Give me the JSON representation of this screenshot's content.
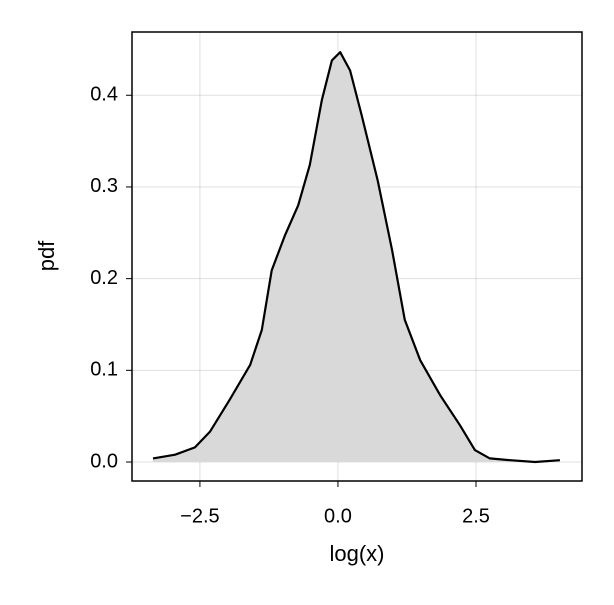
{
  "chart_data": {
    "type": "density",
    "xlabel": "log(x)",
    "ylabel": "pdf",
    "x": [
      -3.35,
      -2.95,
      -2.59,
      -2.32,
      -1.96,
      -1.59,
      -1.38,
      -1.2,
      -0.96,
      -0.72,
      -0.51,
      -0.29,
      -0.11,
      0.04,
      0.22,
      0.43,
      0.72,
      0.98,
      1.21,
      1.49,
      1.85,
      2.21,
      2.48,
      2.75,
      3.12,
      3.57,
      4.02
    ],
    "values": [
      0.004,
      0.008,
      0.016,
      0.033,
      0.068,
      0.106,
      0.144,
      0.209,
      0.247,
      0.28,
      0.324,
      0.395,
      0.438,
      0.447,
      0.427,
      0.378,
      0.307,
      0.231,
      0.155,
      0.111,
      0.073,
      0.04,
      0.013,
      0.004,
      0.002,
      0.0,
      0.002
    ],
    "color": "#000000",
    "fill": "#d9d9d9",
    "xlim": [
      -3.73,
      4.42
    ],
    "ylim": [
      -0.0207,
      0.469
    ],
    "xticks": [
      {
        "value": -2.5,
        "label": "−2.5"
      },
      {
        "value": 0,
        "label": "0.0"
      },
      2.5
    ],
    "yticks": [
      {
        "value": 0,
        "label": "0.0"
      },
      0.1,
      0.2,
      0.3,
      0.4
    ],
    "grid": true
  }
}
